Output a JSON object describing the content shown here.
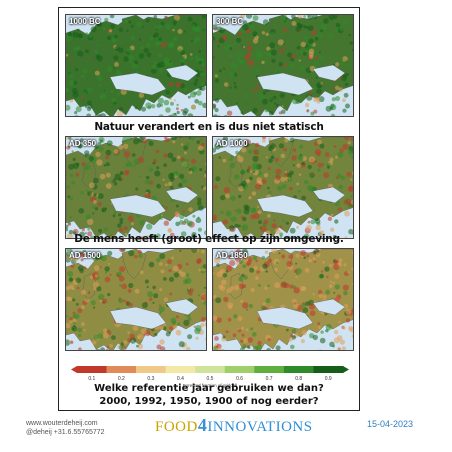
{
  "maps": [
    {
      "label": "1000 BC",
      "forest": 0.85
    },
    {
      "label": "300 BC",
      "forest": 0.8
    },
    {
      "label": "AD 350",
      "forest": 0.6
    },
    {
      "label": "AD 1000",
      "forest": 0.55
    },
    {
      "label": "AD 1500",
      "forest": 0.4
    },
    {
      "label": "AD 1850",
      "forest": 0.3
    }
  ],
  "captions": {
    "top": "Natuur verandert en is dus niet statisch",
    "middle": "De mens heeft (groot) effect op zijn omgeving."
  },
  "colorbar": {
    "ticks": [
      "0.1",
      "0.2",
      "0.3",
      "0.4",
      "0.5",
      "0.6",
      "0.7",
      "0.8",
      "0.9"
    ],
    "label": "Forested fraction of gridcell",
    "colors": [
      "#c0392b",
      "#e08a5a",
      "#f0c98a",
      "#f3e9a6",
      "#cfe39a",
      "#9fcf6a",
      "#5eaf3e",
      "#2f8a2a",
      "#145e1a"
    ]
  },
  "question": {
    "line1": "Welke referentie jaar gebruiken we dan?",
    "line2": "2000, 1992, 1950, 1900 of nog eerder?"
  },
  "footer": {
    "website": "www.wouterdeheij.com",
    "contact": "@deheij  +31.6.55765772",
    "brand_a": "FOOD",
    "brand_four": "4",
    "brand_b": "INNOVATIONS",
    "date": "15-04-2023"
  }
}
